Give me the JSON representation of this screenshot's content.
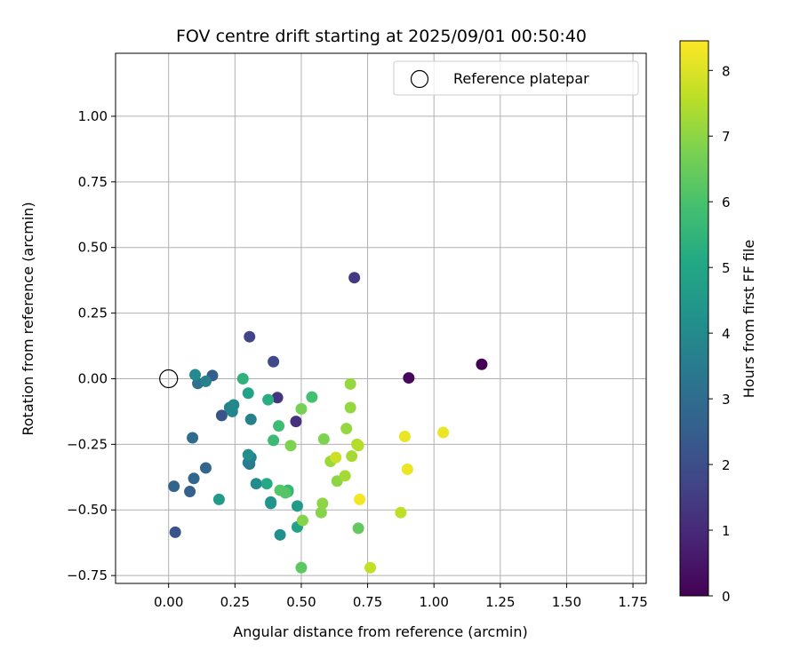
{
  "chart_data": {
    "type": "scatter",
    "title": "FOV centre drift starting at 2025/09/01 00:50:40",
    "xlabel": "Angular distance from reference (arcmin)",
    "ylabel": "Rotation from reference (arcmin)",
    "colorbar_label": "Hours from first FF file",
    "xlim": [
      -0.2,
      1.8
    ],
    "ylim": [
      -0.78,
      1.24
    ],
    "x_ticks": [
      0.0,
      0.25,
      0.5,
      0.75,
      1.0,
      1.25,
      1.5,
      1.75
    ],
    "x_tick_labels": [
      "0.00",
      "0.25",
      "0.50",
      "0.75",
      "1.00",
      "1.25",
      "1.50",
      "1.75"
    ],
    "y_ticks": [
      -0.75,
      -0.5,
      -0.25,
      0.0,
      0.25,
      0.5,
      0.75,
      1.0
    ],
    "y_tick_labels": [
      "−0.75",
      "−0.50",
      "−0.25",
      "0.00",
      "0.25",
      "0.50",
      "0.75",
      "1.00"
    ],
    "colorbar_range": [
      0,
      8.45
    ],
    "colorbar_ticks": [
      0,
      1,
      2,
      3,
      4,
      5,
      6,
      7,
      8
    ],
    "colorbar_tick_labels": [
      "0",
      "1",
      "2",
      "3",
      "4",
      "5",
      "6",
      "7",
      "8"
    ],
    "colormap": "viridis",
    "grid": true,
    "legend_position": "top-right",
    "legend": [
      {
        "label": "Reference platepar",
        "marker": "open-circle",
        "x": 0.0,
        "y": 0.0
      }
    ],
    "points": [
      {
        "x": 1.18,
        "y": 0.055,
        "h": 0.0
      },
      {
        "x": 0.905,
        "y": 0.003,
        "h": 0.2
      },
      {
        "x": 0.7,
        "y": 0.385,
        "h": 1.4
      },
      {
        "x": 0.48,
        "y": -0.163,
        "h": 1.2
      },
      {
        "x": 0.41,
        "y": -0.072,
        "h": 1.3
      },
      {
        "x": 0.305,
        "y": 0.16,
        "h": 1.7
      },
      {
        "x": 0.395,
        "y": 0.065,
        "h": 1.8
      },
      {
        "x": 0.025,
        "y": -0.585,
        "h": 2.2
      },
      {
        "x": 0.2,
        "y": -0.14,
        "h": 2.2
      },
      {
        "x": 0.165,
        "y": 0.012,
        "h": 2.5
      },
      {
        "x": 0.08,
        "y": -0.43,
        "h": 2.6
      },
      {
        "x": 0.02,
        "y": -0.41,
        "h": 2.7
      },
      {
        "x": 0.14,
        "y": -0.34,
        "h": 2.8
      },
      {
        "x": 0.095,
        "y": -0.38,
        "h": 2.8
      },
      {
        "x": 0.09,
        "y": -0.225,
        "h": 3.0
      },
      {
        "x": 0.11,
        "y": -0.018,
        "h": 3.1
      },
      {
        "x": 0.305,
        "y": -0.325,
        "h": 3.3
      },
      {
        "x": 0.3,
        "y": -0.32,
        "h": 3.5
      },
      {
        "x": 0.14,
        "y": -0.01,
        "h": 3.6
      },
      {
        "x": 0.31,
        "y": -0.3,
        "h": 3.6
      },
      {
        "x": 0.31,
        "y": -0.155,
        "h": 3.7
      },
      {
        "x": 0.23,
        "y": -0.11,
        "h": 3.7
      },
      {
        "x": 0.24,
        "y": -0.125,
        "h": 3.8
      },
      {
        "x": 0.245,
        "y": -0.1,
        "h": 3.9
      },
      {
        "x": 0.1,
        "y": 0.015,
        "h": 4.0
      },
      {
        "x": 0.33,
        "y": -0.4,
        "h": 4.1
      },
      {
        "x": 0.3,
        "y": -0.29,
        "h": 4.2
      },
      {
        "x": 0.42,
        "y": -0.595,
        "h": 4.2
      },
      {
        "x": 0.385,
        "y": -0.47,
        "h": 4.4
      },
      {
        "x": 0.385,
        "y": -0.475,
        "h": 4.4
      },
      {
        "x": 0.485,
        "y": -0.485,
        "h": 4.6
      },
      {
        "x": 0.19,
        "y": -0.46,
        "h": 4.6
      },
      {
        "x": 0.485,
        "y": -0.565,
        "h": 4.9
      },
      {
        "x": 0.3,
        "y": -0.055,
        "h": 4.9
      },
      {
        "x": 0.37,
        "y": -0.4,
        "h": 5.1
      },
      {
        "x": 0.375,
        "y": -0.08,
        "h": 5.3
      },
      {
        "x": 0.28,
        "y": 0.0,
        "h": 5.4
      },
      {
        "x": 0.45,
        "y": -0.43,
        "h": 5.6
      },
      {
        "x": 0.45,
        "y": -0.425,
        "h": 5.6
      },
      {
        "x": 0.395,
        "y": -0.235,
        "h": 5.7
      },
      {
        "x": 0.415,
        "y": -0.18,
        "h": 5.8
      },
      {
        "x": 0.54,
        "y": -0.07,
        "h": 5.9
      },
      {
        "x": 0.42,
        "y": -0.425,
        "h": 6.2
      },
      {
        "x": 0.44,
        "y": -0.435,
        "h": 6.2
      },
      {
        "x": 0.5,
        "y": -0.72,
        "h": 6.3
      },
      {
        "x": 0.715,
        "y": -0.57,
        "h": 6.4
      },
      {
        "x": 0.5,
        "y": -0.115,
        "h": 6.7
      },
      {
        "x": 0.46,
        "y": -0.255,
        "h": 6.8
      },
      {
        "x": 0.585,
        "y": -0.23,
        "h": 6.8
      },
      {
        "x": 0.505,
        "y": -0.54,
        "h": 6.9
      },
      {
        "x": 0.575,
        "y": -0.51,
        "h": 6.9
      },
      {
        "x": 0.58,
        "y": -0.475,
        "h": 7.0
      },
      {
        "x": 0.635,
        "y": -0.39,
        "h": 7.0
      },
      {
        "x": 0.67,
        "y": -0.19,
        "h": 7.1
      },
      {
        "x": 0.685,
        "y": -0.11,
        "h": 7.1
      },
      {
        "x": 0.685,
        "y": -0.02,
        "h": 7.1
      },
      {
        "x": 0.61,
        "y": -0.315,
        "h": 7.2
      },
      {
        "x": 0.665,
        "y": -0.37,
        "h": 7.3
      },
      {
        "x": 0.69,
        "y": -0.295,
        "h": 7.3
      },
      {
        "x": 0.71,
        "y": -0.25,
        "h": 7.4
      },
      {
        "x": 0.715,
        "y": -0.255,
        "h": 7.5
      },
      {
        "x": 0.875,
        "y": -0.51,
        "h": 7.6
      },
      {
        "x": 0.76,
        "y": -0.72,
        "h": 7.7
      },
      {
        "x": 0.63,
        "y": -0.3,
        "h": 7.8
      },
      {
        "x": 0.72,
        "y": -0.46,
        "h": 8.3
      },
      {
        "x": 0.9,
        "y": -0.345,
        "h": 8.2
      },
      {
        "x": 0.89,
        "y": -0.22,
        "h": 8.2
      },
      {
        "x": 1.035,
        "y": -0.205,
        "h": 8.2
      }
    ]
  }
}
